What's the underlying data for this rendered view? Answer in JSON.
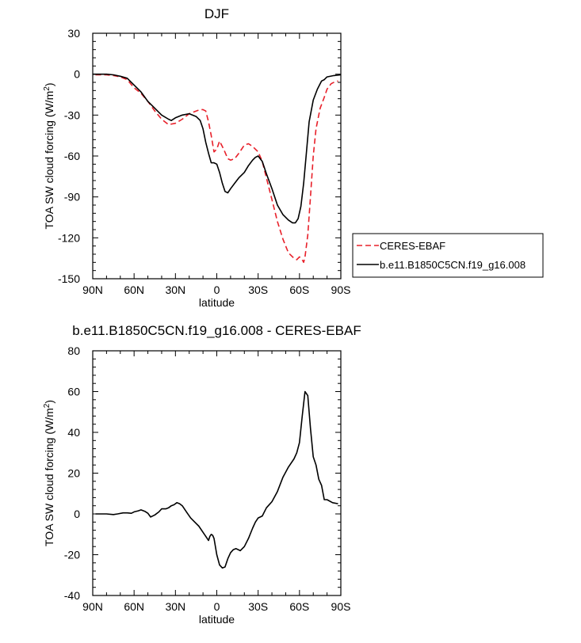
{
  "chart_data": [
    {
      "type": "line",
      "title": "DJF",
      "xlabel": "latitude",
      "ylabel": "TOA SW cloud forcing (W/m",
      "ylabel_sup": "2",
      "ylabel_close": ")",
      "xlim": [
        90,
        -90
      ],
      "ylim": [
        -150,
        30
      ],
      "x_ticks": [
        90,
        60,
        30,
        0,
        -30,
        -60,
        -90
      ],
      "x_tick_labels": [
        "90N",
        "60N",
        "30N",
        "0",
        "30S",
        "60S",
        "90S"
      ],
      "y_ticks": [
        30,
        0,
        -30,
        -60,
        -90,
        -120,
        -150
      ],
      "y_tick_labels": [
        "30",
        "0",
        "-30",
        "-60",
        "-90",
        "-120",
        "-150"
      ],
      "legend_position": "right",
      "series": [
        {
          "name": "CERES-EBAF",
          "color": "#e8202a",
          "dash": "dashed",
          "x": [
            88,
            80,
            75,
            70,
            65,
            60,
            55,
            50,
            45,
            40,
            35,
            30,
            25,
            20,
            15,
            12,
            10,
            8,
            6,
            4,
            2,
            0,
            -2,
            -5,
            -8,
            -10,
            -13,
            -16,
            -20,
            -23,
            -26,
            -30,
            -33,
            -36,
            -40,
            -44,
            -48,
            -52,
            -56,
            -58,
            -60,
            -62,
            -63,
            -64,
            -66,
            -68,
            -70,
            -72,
            -75,
            -78,
            -80,
            -83,
            -86,
            -88
          ],
          "y": [
            -0.5,
            -0.5,
            -1,
            -2,
            -4,
            -10,
            -14,
            -20,
            -27,
            -33,
            -37,
            -36,
            -33,
            -29,
            -27,
            -26,
            -26,
            -27,
            -35,
            -45,
            -57,
            -55,
            -49,
            -55,
            -62,
            -63,
            -62,
            -58,
            -52,
            -51,
            -53,
            -57,
            -64,
            -76,
            -92,
            -108,
            -121,
            -131,
            -135,
            -136,
            -134,
            -136,
            -138,
            -134,
            -118,
            -90,
            -60,
            -40,
            -25,
            -17,
            -11,
            -7,
            -5.5,
            -5
          ]
        },
        {
          "name": "b.e11.B1850C5CN.f19_g16.008",
          "color": "#000000",
          "dash": "solid",
          "x": [
            90,
            80,
            75,
            70,
            65,
            60,
            55,
            50,
            45,
            40,
            35,
            33,
            30,
            25,
            20,
            15,
            12,
            10,
            8,
            6,
            4,
            2,
            0,
            -2,
            -4,
            -6,
            -8,
            -10,
            -13,
            -16,
            -20,
            -23,
            -26,
            -28,
            -30,
            -33,
            -36,
            -40,
            -44,
            -48,
            -52,
            -55,
            -57,
            -59,
            -61,
            -63,
            -65,
            -67,
            -70,
            -73,
            -76,
            -78,
            -80,
            -85,
            -90
          ],
          "y": [
            0,
            0,
            -0.5,
            -1.5,
            -3,
            -8,
            -13,
            -20,
            -25,
            -30,
            -33,
            -34,
            -32,
            -30,
            -29,
            -31,
            -34,
            -40,
            -50,
            -58,
            -65,
            -65,
            -66,
            -72,
            -80,
            -86,
            -87,
            -84,
            -80,
            -76,
            -72,
            -67,
            -63,
            -61,
            -60,
            -64,
            -73,
            -84,
            -96,
            -103,
            -107,
            -109,
            -109,
            -106,
            -97,
            -80,
            -58,
            -35,
            -19,
            -11,
            -5,
            -4,
            -2,
            -1,
            -0.5
          ]
        }
      ]
    },
    {
      "type": "line",
      "title": "b.e11.B1850C5CN.f19_g16.008 - CERES-EBAF",
      "xlabel": "latitude",
      "ylabel": "TOA SW cloud forcing (W/m",
      "ylabel_sup": "2",
      "ylabel_close": ")",
      "xlim": [
        90,
        -90
      ],
      "ylim": [
        -40,
        80
      ],
      "x_ticks": [
        90,
        60,
        30,
        0,
        -30,
        -60,
        -90
      ],
      "x_tick_labels": [
        "90N",
        "60N",
        "30N",
        "0",
        "30S",
        "60S",
        "90S"
      ],
      "y_ticks": [
        80,
        60,
        40,
        20,
        0,
        -20,
        -40
      ],
      "y_tick_labels": [
        "80",
        "60",
        "40",
        "20",
        "0",
        "-20",
        "-40"
      ],
      "series": [
        {
          "color": "#000000",
          "dash": "solid",
          "x": [
            88,
            80,
            75,
            72,
            68,
            65,
            62,
            60,
            57,
            55,
            52,
            50,
            48,
            45,
            42,
            40,
            37,
            35,
            33,
            31,
            29,
            27,
            25,
            22,
            19,
            16,
            13,
            10,
            8,
            6,
            5,
            4,
            3,
            2,
            0,
            -2,
            -4,
            -6,
            -8,
            -10,
            -12,
            -14,
            -17,
            -20,
            -23,
            -26,
            -28,
            -30,
            -33,
            -36,
            -40,
            -44,
            -48,
            -52,
            -56,
            -58,
            -60,
            -62,
            -64,
            -66,
            -68,
            -70,
            -72,
            -74,
            -76,
            -78,
            -80,
            -84,
            -88
          ],
          "y": [
            0,
            0,
            -0.3,
            0,
            0.5,
            0.5,
            0.3,
            1,
            1.5,
            2,
            1.2,
            0.3,
            -1.5,
            -0.5,
            1,
            2.5,
            2.5,
            3,
            4,
            4.5,
            5.5,
            5,
            4,
            1,
            -2,
            -4,
            -6,
            -9,
            -11,
            -13,
            -11,
            -10,
            -10.5,
            -12,
            -20,
            -25,
            -26.5,
            -26,
            -22,
            -19,
            -17.5,
            -17,
            -18,
            -16,
            -12,
            -7,
            -4,
            -2,
            -1,
            3,
            6,
            11,
            18,
            23,
            27,
            30,
            35,
            48,
            60,
            58,
            42,
            28,
            24,
            17,
            14,
            7,
            7,
            5.5,
            5
          ]
        }
      ]
    }
  ]
}
